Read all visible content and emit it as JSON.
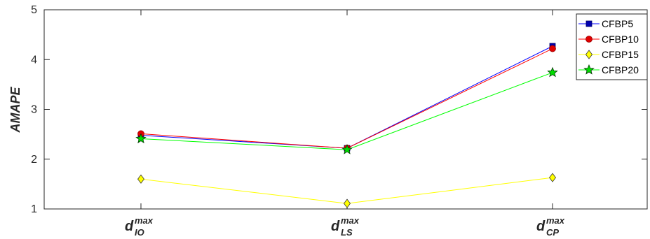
{
  "chart_data": {
    "type": "line",
    "ylabel": "AMAPE",
    "ylim": [
      1,
      5
    ],
    "yticks": [
      1,
      2,
      3,
      4,
      5
    ],
    "grid": false,
    "legend_position": "top-right",
    "categories": [
      {
        "base": "d",
        "sup": "max",
        "sub": "IO"
      },
      {
        "base": "d",
        "sup": "max",
        "sub": "LS"
      },
      {
        "base": "d",
        "sup": "max",
        "sub": "CP"
      }
    ],
    "series": [
      {
        "name": "CFBP5",
        "values": [
          2.48,
          2.22,
          4.27
        ],
        "color": "#0000ff",
        "marker": "square",
        "marker_color": "#0000b0"
      },
      {
        "name": "CFBP10",
        "values": [
          2.51,
          2.22,
          4.22
        ],
        "color": "#ff0000",
        "marker": "circle",
        "marker_color": "#e00000"
      },
      {
        "name": "CFBP15",
        "values": [
          1.6,
          1.11,
          1.63
        ],
        "color": "#ffff00",
        "marker": "diamond",
        "marker_color": "#ffff00"
      },
      {
        "name": "CFBP20",
        "values": [
          2.41,
          2.19,
          3.74
        ],
        "color": "#00ff00",
        "marker": "star",
        "marker_color": "#00dd00"
      }
    ]
  }
}
